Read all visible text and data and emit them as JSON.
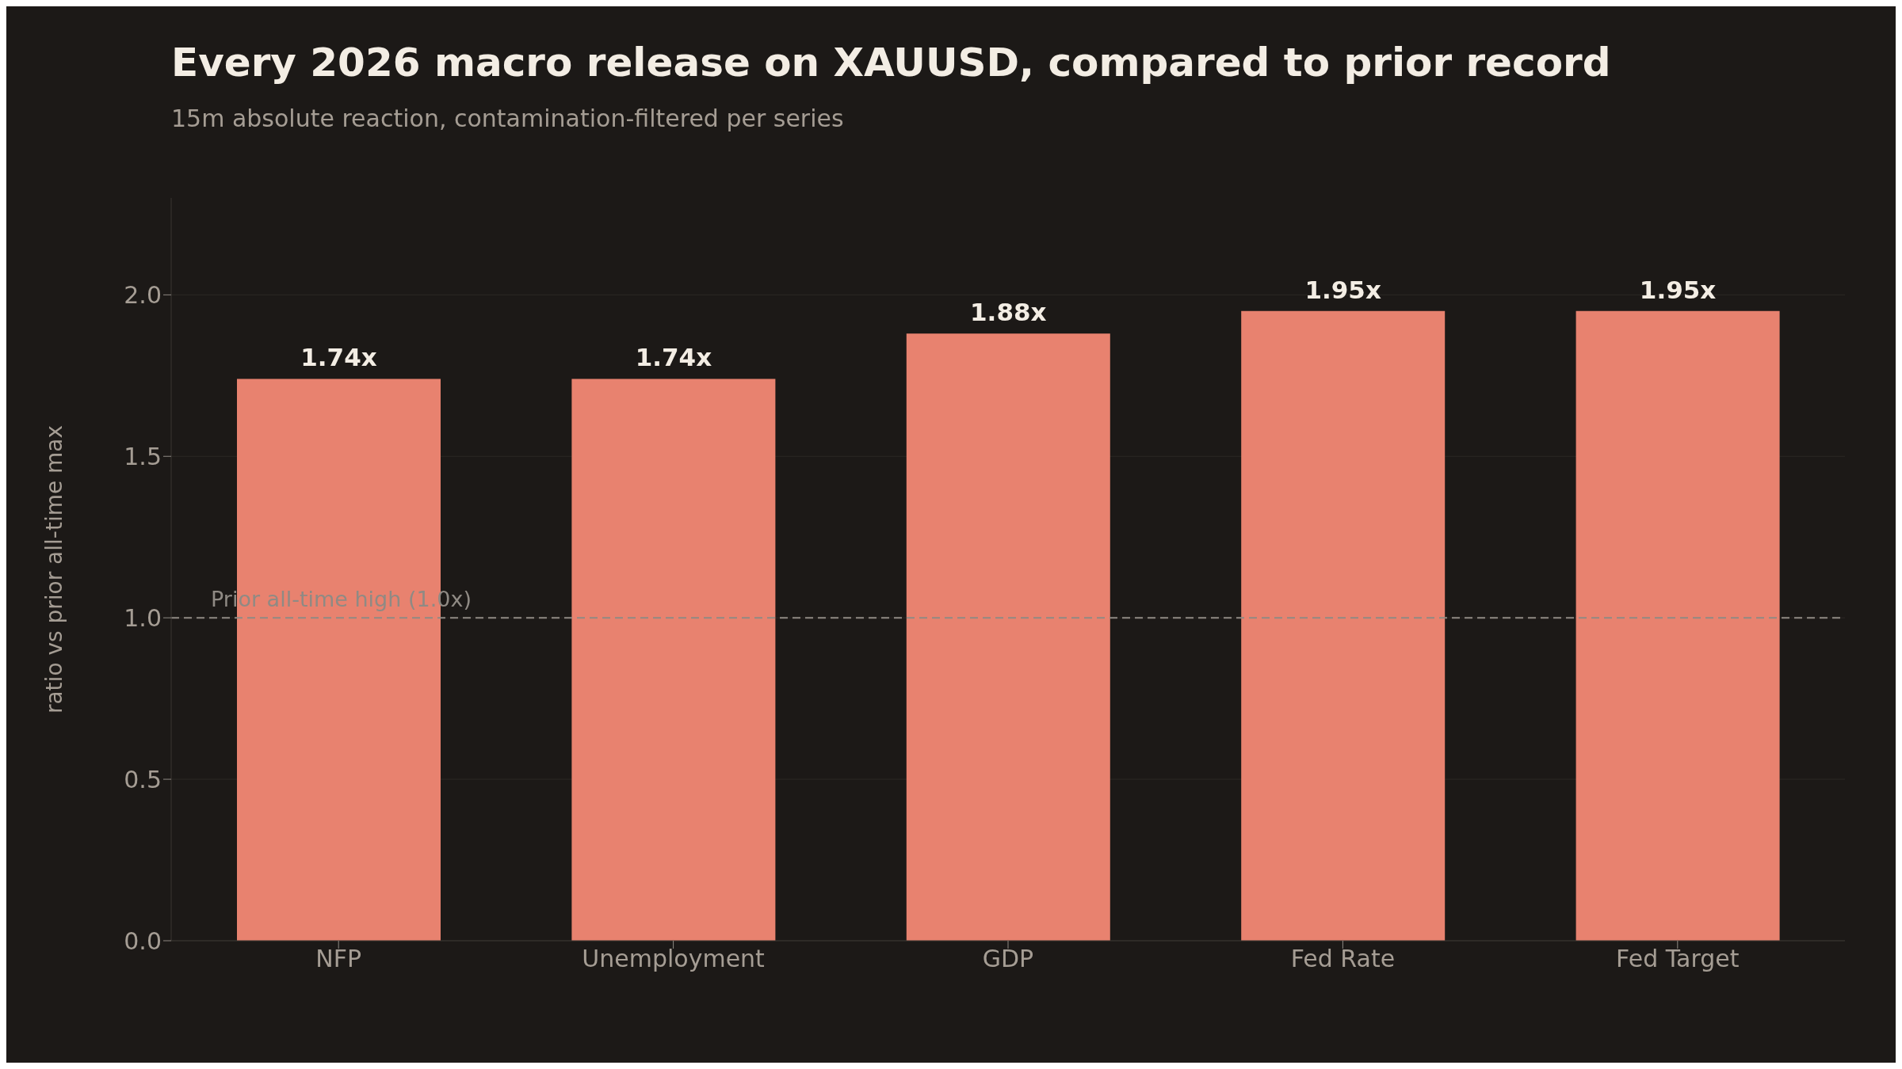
{
  "chart_data": {
    "type": "bar",
    "title": "Every 2026 macro release on XAUUSD, compared to prior record",
    "subtitle": "15m absolute reaction, contamination-filtered per series",
    "ylabel": "ratio vs prior all-time max",
    "categories": [
      "NFP",
      "Unemployment",
      "GDP",
      "Fed Rate",
      "Fed Target"
    ],
    "values": [
      1.74,
      1.74,
      1.88,
      1.95,
      1.95
    ],
    "value_labels": [
      "1.74x",
      "1.74x",
      "1.88x",
      "1.95x",
      "1.95x"
    ],
    "color": "#e8826f",
    "ylim": [
      0,
      2.3
    ],
    "yticks": [
      {
        "value": 0,
        "label": "0.0"
      },
      {
        "value": 0.5,
        "label": "0.5"
      },
      {
        "value": 1,
        "label": "1.0"
      },
      {
        "value": 1.5,
        "label": "1.5"
      },
      {
        "value": 2,
        "label": "2.0"
      }
    ],
    "grid": "y",
    "ref_lines": [
      {
        "axis": "y",
        "value": 1,
        "label": "Prior all-time high (1.0x)",
        "color": "#8f8a84",
        "line_style": "dashed"
      }
    ]
  }
}
